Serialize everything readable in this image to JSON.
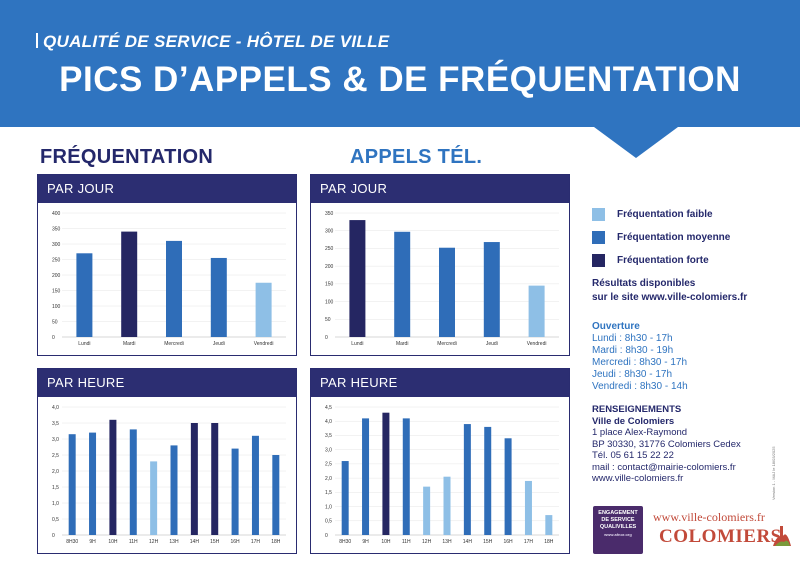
{
  "colors": {
    "banner": "#2f74c0",
    "dark_navy": "#24286b",
    "panel_head": "#2c2e72",
    "low": "#8ebfe6",
    "mid": "#2f6db8",
    "high": "#252662"
  },
  "header": {
    "kicker": "QUALITÉ DE SERVICE - HÔTEL DE VILLE",
    "title": "PICS D’APPELS & DE FRÉQUENTATION"
  },
  "sections": {
    "frequentation": "FRÉQUENTATION",
    "appels": "APPELS TÉL."
  },
  "panels": {
    "freq_day": {
      "title": "PAR JOUR"
    },
    "calls_day": {
      "title": "PAR JOUR"
    },
    "freq_hour": {
      "title": "PAR HEURE"
    },
    "calls_hour": {
      "title": "PAR HEURE"
    }
  },
  "chart_data": [
    {
      "type": "bar",
      "categories": [
        "Lundi",
        "Mardi",
        "Mercredi",
        "Jeudi",
        "Vendredi"
      ],
      "values": [
        270,
        340,
        310,
        255,
        175
      ],
      "levels": [
        "mid",
        "high",
        "mid",
        "mid",
        "low"
      ],
      "ylim": [
        0,
        400
      ],
      "yticks": [
        "0",
        "50",
        "100",
        "150",
        "200",
        "250",
        "300",
        "350",
        "400"
      ]
    },
    {
      "type": "bar",
      "categories": [
        "Lundi",
        "Mardi",
        "Mercredi",
        "Jeudi",
        "Vendredi"
      ],
      "values": [
        330,
        297,
        252,
        268,
        145
      ],
      "levels": [
        "high",
        "mid",
        "mid",
        "mid",
        "low"
      ],
      "ylim": [
        0,
        350
      ],
      "yticks": [
        "0",
        "50",
        "100",
        "150",
        "200",
        "250",
        "300",
        "350"
      ]
    },
    {
      "type": "bar",
      "categories": [
        "8H30",
        "9H",
        "10H",
        "11H",
        "12H",
        "13H",
        "14H",
        "15H",
        "16H",
        "17H",
        "18H"
      ],
      "values": [
        3.15,
        3.2,
        3.6,
        3.3,
        2.3,
        2.8,
        3.5,
        3.5,
        2.7,
        3.1,
        2.5
      ],
      "levels": [
        "mid",
        "mid",
        "high",
        "mid",
        "low",
        "mid",
        "high",
        "high",
        "mid",
        "mid",
        "mid"
      ],
      "ylim": [
        0,
        4.0
      ],
      "yticks": [
        "0",
        "0,5",
        "1,0",
        "1,5",
        "2,0",
        "2,5",
        "3,0",
        "3,5",
        "4,0"
      ]
    },
    {
      "type": "bar",
      "categories": [
        "8H30",
        "9H",
        "10H",
        "11H",
        "12H",
        "13H",
        "14H",
        "15H",
        "16H",
        "17H",
        "18H"
      ],
      "values": [
        2.6,
        4.1,
        4.3,
        4.1,
        1.7,
        2.05,
        3.9,
        3.8,
        3.4,
        1.9,
        0.7
      ],
      "levels": [
        "mid",
        "mid",
        "high",
        "mid",
        "low",
        "low",
        "mid",
        "mid",
        "mid",
        "low",
        "low"
      ],
      "ylim": [
        0,
        4.5
      ],
      "yticks": [
        "0",
        "0,5",
        "1,0",
        "1,5",
        "2,0",
        "2,5",
        "3,0",
        "3,5",
        "4,0",
        "4,5"
      ]
    }
  ],
  "legend": [
    {
      "label": "Fréquentation faible",
      "level": "low"
    },
    {
      "label": "Fréquentation moyenne",
      "level": "mid"
    },
    {
      "label": "Fréquentation forte",
      "level": "high"
    }
  ],
  "results": {
    "line1": "Résultats disponibles",
    "line2": "sur le site www.ville-colomiers.fr"
  },
  "hours": {
    "heading": "Ouverture",
    "lines": [
      "Lundi : 8h30 - 17h",
      "Mardi : 8h30 - 19h",
      "Mercredi : 8h30 - 17h",
      "Jeudi : 8h30 - 17h",
      "Vendredi : 8h30 - 14h"
    ]
  },
  "contact": {
    "heading": "RENSEIGNEMENTS",
    "org": "Ville de Colomiers",
    "address1": "1 place Alex-Raymond",
    "address2": "BP 30330, 31776 Colomiers Cedex",
    "phone": "Tél. 05 61 15 22 22",
    "mail": "mail : contact@mairie-colomiers.fr",
    "web": "www.ville-colomiers.fr"
  },
  "fineprint": "Version 1 - MAJ le 18/03/2025",
  "badge": {
    "line1": "ENGAGEMENT",
    "line2": "DE SERVICE",
    "line3": "QUALIVILLES",
    "line4": "www.afnor.org"
  },
  "logo": {
    "url": "www.ville-colomiers.fr",
    "name": "COLOMIERS"
  }
}
